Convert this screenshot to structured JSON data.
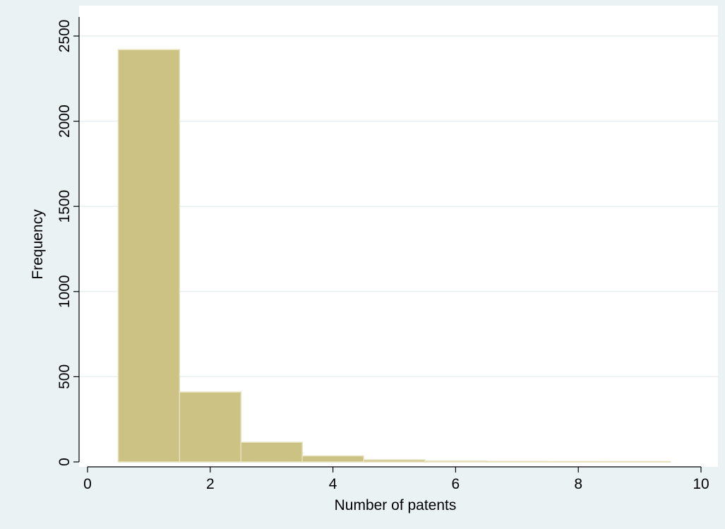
{
  "chart_data": {
    "type": "bar",
    "title": "",
    "xlabel": "Number of patents",
    "ylabel": "Frequency",
    "xlim": [
      0,
      10
    ],
    "ylim": [
      0,
      2500
    ],
    "xticks": [
      "0",
      "2",
      "4",
      "6",
      "8",
      "10"
    ],
    "yticks": [
      "0",
      "500",
      "1000",
      "1500",
      "2000",
      "2500"
    ],
    "grid": true,
    "legend": "none",
    "bin_width": 1,
    "bins": [
      {
        "x": 1,
        "value": 2420
      },
      {
        "x": 2,
        "value": 410
      },
      {
        "x": 3,
        "value": 115
      },
      {
        "x": 4,
        "value": 35
      },
      {
        "x": 5,
        "value": 12
      },
      {
        "x": 6,
        "value": 5
      },
      {
        "x": 7,
        "value": 3
      },
      {
        "x": 8,
        "value": 2
      },
      {
        "x": 9,
        "value": 2
      }
    ],
    "colors": {
      "background": "#eaf2f3",
      "plot_background": "#ffffff",
      "bar_fill": "#ccc284",
      "bar_stroke": "#e6e0bb",
      "grid": "#e9f0f1",
      "axis": "#000000"
    }
  }
}
